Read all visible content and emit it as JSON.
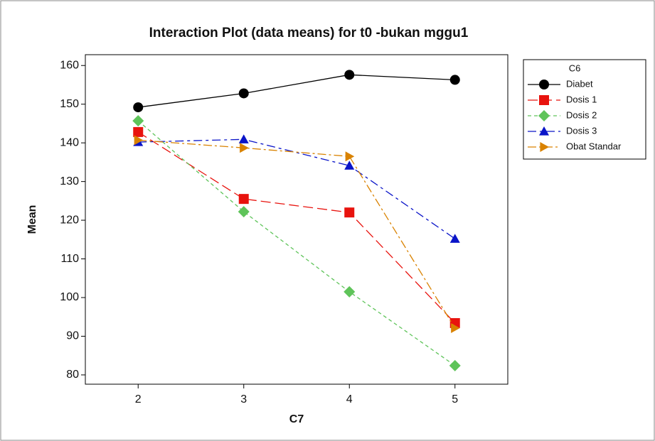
{
  "chart_data": {
    "type": "line",
    "title": "Interaction Plot (data means) for t0 -bukan mggu1",
    "x_label": "C7",
    "y_label": "Mean",
    "legend_title": "C6",
    "x": [
      2,
      3,
      4,
      5
    ],
    "xlim": [
      1.5,
      5.5
    ],
    "xticks": [
      2,
      3,
      4,
      5
    ],
    "ylim": [
      77.6,
      162.8
    ],
    "yticks": [
      80,
      90,
      100,
      110,
      120,
      130,
      140,
      150,
      160
    ],
    "grid": false,
    "legend": "right",
    "series": [
      {
        "name": "Diabet",
        "color": "#000000",
        "values": [
          149.2,
          152.8,
          157.6,
          156.3
        ]
      },
      {
        "name": "Dosis 1",
        "color": "#e8130e",
        "values": [
          142.8,
          125.5,
          122.0,
          93.4
        ]
      },
      {
        "name": "Dosis 2",
        "color": "#5fc45a",
        "values": [
          145.7,
          122.2,
          101.5,
          82.4
        ]
      },
      {
        "name": "Dosis 3",
        "color": "#0a14c8",
        "values": [
          140.2,
          140.9,
          134.1,
          115.2
        ]
      },
      {
        "name": "Obat Standar",
        "color": "#d98200",
        "values": [
          140.7,
          138.7,
          136.5,
          92.1
        ]
      }
    ]
  }
}
